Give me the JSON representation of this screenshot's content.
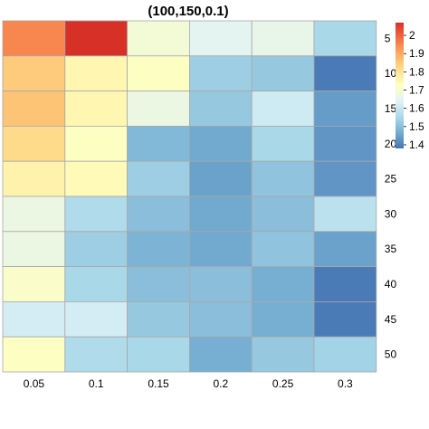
{
  "chart_data": {
    "type": "heatmap",
    "title": "(100,150,0.1)",
    "x_categories": [
      "0.05",
      "0.1",
      "0.15",
      "0.2",
      "0.25",
      "0.3"
    ],
    "y_categories": [
      "5",
      "10",
      "15",
      "20",
      "25",
      "30",
      "35",
      "40",
      "45",
      "50"
    ],
    "values": [
      [
        1.95,
        2.07,
        1.69,
        1.65,
        1.66,
        1.55
      ],
      [
        1.85,
        1.75,
        1.72,
        1.53,
        1.52,
        1.39
      ],
      [
        1.86,
        1.75,
        1.67,
        1.52,
        1.61,
        1.44
      ],
      [
        1.82,
        1.72,
        1.49,
        1.46,
        1.55,
        1.43
      ],
      [
        1.76,
        1.74,
        1.53,
        1.45,
        1.51,
        1.43
      ],
      [
        1.67,
        1.56,
        1.5,
        1.46,
        1.5,
        1.58
      ],
      [
        1.67,
        1.53,
        1.48,
        1.46,
        1.51,
        1.45
      ],
      [
        1.71,
        1.55,
        1.5,
        1.5,
        1.47,
        1.39
      ],
      [
        1.62,
        1.62,
        1.52,
        1.5,
        1.47,
        1.39
      ],
      [
        1.72,
        1.56,
        1.55,
        1.47,
        1.52,
        1.54
      ]
    ],
    "colorbar": {
      "min": 1.38,
      "max": 2.07,
      "ticks": [
        "2",
        "1.9",
        "1.8",
        "1.7",
        "1.6",
        "1.5",
        "1.4"
      ],
      "tick_values": [
        2.0,
        1.9,
        1.8,
        1.7,
        1.6,
        1.5,
        1.4
      ],
      "palette": [
        "#4575b4",
        "#74add1",
        "#abd9e9",
        "#e0f3f8",
        "#ffffbf",
        "#fee090",
        "#fdae61",
        "#f46d43",
        "#d73027"
      ]
    },
    "legend_placement": "right",
    "grid": true
  }
}
